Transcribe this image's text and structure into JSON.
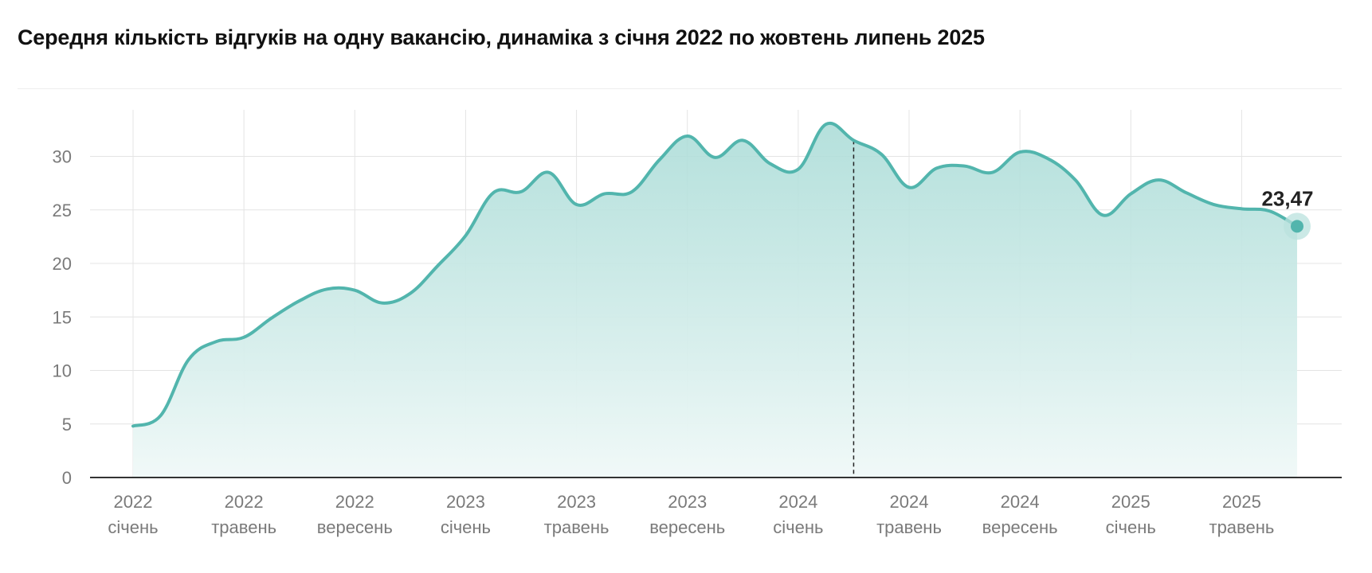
{
  "title": "Середня кількість відгуків на одну вакансію, динаміка з січня 2022 по жовтень липень 2025",
  "colors": {
    "line": "#52b5ad",
    "area_top": "#a8dbd6",
    "area_bottom": "#f1f9f8",
    "grid": "#e4e4e4",
    "axis": "#333333",
    "tick_text": "#7a7a7a",
    "marker": "#52b5ad",
    "marker_halo": "#b9e1dd",
    "divider": "#222222"
  },
  "chart_data": {
    "type": "area",
    "title": "Середня кількість відгуків на одну вакансію, динаміка з січня 2022 по жовтень липень 2025",
    "xlabel": "",
    "ylabel": "",
    "ylim": [
      0,
      34
    ],
    "yticks": [
      0,
      5,
      10,
      15,
      20,
      25,
      30
    ],
    "grid": true,
    "legend": "none",
    "x_ticks": [
      {
        "year": "2022",
        "month": "січень",
        "index": 0
      },
      {
        "year": "2022",
        "month": "травень",
        "index": 4
      },
      {
        "year": "2022",
        "month": "вересень",
        "index": 8
      },
      {
        "year": "2023",
        "month": "січень",
        "index": 12
      },
      {
        "year": "2023",
        "month": "травень",
        "index": 16
      },
      {
        "year": "2023",
        "month": "вересень",
        "index": 20
      },
      {
        "year": "2024",
        "month": "січень",
        "index": 24
      },
      {
        "year": "2024",
        "month": "травень",
        "index": 28
      },
      {
        "year": "2024",
        "month": "вересень",
        "index": 32
      },
      {
        "year": "2025",
        "month": "січень",
        "index": 36
      },
      {
        "year": "2025",
        "month": "травень",
        "index": 40
      }
    ],
    "divider_index": 26,
    "series": [
      {
        "values": [
          4.8,
          5.8,
          11.0,
          12.7,
          13.1,
          14.9,
          16.5,
          17.6,
          17.5,
          16.3,
          17.2,
          19.8,
          22.6,
          26.6,
          26.7,
          28.5,
          25.5,
          26.5,
          26.7,
          29.7,
          31.9,
          29.9,
          31.5,
          29.3,
          28.8,
          33.0,
          31.5,
          30.2,
          27.1,
          28.9,
          29.1,
          28.5,
          30.4,
          29.8,
          27.8,
          24.5,
          26.5,
          27.8,
          26.6,
          25.5,
          25.1,
          24.9,
          23.47
        ]
      }
    ],
    "end_label": "23,47"
  }
}
